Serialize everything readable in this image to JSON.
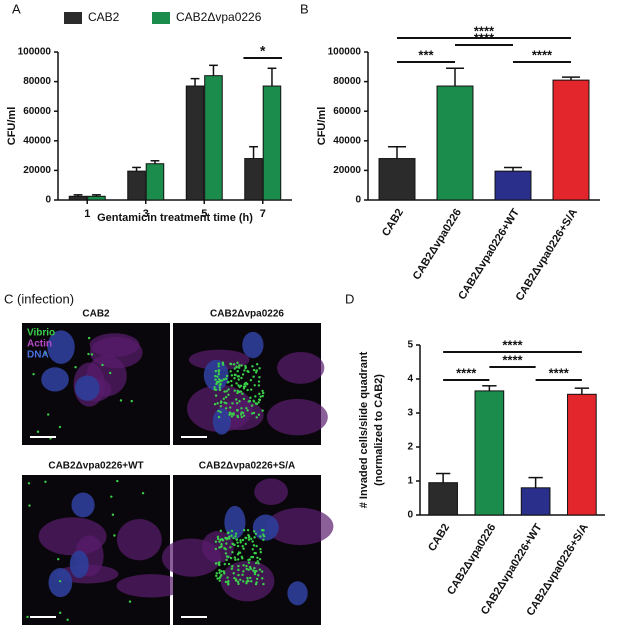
{
  "chart_data": [
    {
      "type": "bar",
      "panel_label": "A",
      "ylabel": "CFU/ml",
      "xlabel": "Gentamicin treatment time (h)",
      "categories": [
        "1",
        "3",
        "5",
        "7"
      ],
      "series": [
        {
          "name": "CAB2",
          "color": "#2b2b2b",
          "values": [
            2500,
            19500,
            77000,
            28000
          ],
          "errors": [
            1000,
            2500,
            5000,
            8000
          ]
        },
        {
          "name": "CAB2Δvpa0226",
          "color": "#1b8c4c",
          "values": [
            2500,
            24500,
            84000,
            77000
          ],
          "errors": [
            1000,
            2000,
            7000,
            12000
          ]
        }
      ],
      "ylim": [
        0,
        100000
      ],
      "yticks": [
        0,
        20000,
        40000,
        60000,
        80000,
        100000
      ],
      "annotations": [
        "*"
      ]
    },
    {
      "type": "bar",
      "panel_label": "B",
      "ylabel": "CFU/ml",
      "categories": [
        "CAB2",
        "CAB2Δvpa0226",
        "CAB2Δvpa0226+WT",
        "CAB2Δvpa0226+S/A"
      ],
      "values": [
        28000,
        77000,
        19500,
        81000
      ],
      "errors": [
        8000,
        12000,
        2500,
        2000
      ],
      "colors": [
        "#2b2b2b",
        "#1b8c4c",
        "#2b2f8c",
        "#e3262b"
      ],
      "ylim": [
        0,
        100000
      ],
      "yticks": [
        0,
        20000,
        40000,
        60000,
        80000,
        100000
      ],
      "annotations": [
        "****",
        "***",
        "****",
        "****"
      ]
    },
    {
      "type": "bar",
      "panel_label": "D",
      "ylabel": [
        "# Invaded cells/slide quadrant",
        "(normalized to CAB2)"
      ],
      "categories": [
        "CAB2",
        "CAB2Δvpa0226",
        "CAB2Δvpa0226+WT",
        "CAB2Δvpa0226+S/A"
      ],
      "values": [
        0.95,
        3.65,
        0.8,
        3.55
      ],
      "errors": [
        0.27,
        0.15,
        0.3,
        0.18
      ],
      "colors": [
        "#2b2b2b",
        "#1b8c4c",
        "#2b2f8c",
        "#e3262b"
      ],
      "ylim": [
        0,
        5
      ],
      "yticks": [
        0,
        1,
        2,
        3,
        4,
        5
      ],
      "annotations": [
        "****",
        "****",
        "****",
        "****"
      ]
    }
  ],
  "panel_c": {
    "panel_label": "C (infection)",
    "images": [
      {
        "label": "CAB2"
      },
      {
        "label": "CAB2Δvpa0226"
      },
      {
        "label": "CAB2Δvpa0226+WT"
      },
      {
        "label": "CAB2Δvpa0226+S/A"
      }
    ],
    "stain_legend": [
      {
        "name": "Vibrio",
        "color": "#3ad04a"
      },
      {
        "name": "Actin",
        "color": "#b548c8"
      },
      {
        "name": "DNA",
        "color": "#4a6ee0"
      }
    ]
  }
}
